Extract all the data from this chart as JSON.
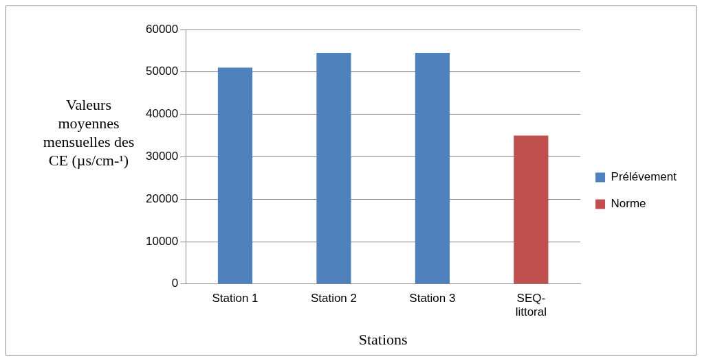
{
  "chart_data": {
    "type": "bar",
    "xlabel": "Stations",
    "ylabel": "Valeurs moyennes mensuelles des CE (µs/cm-¹)",
    "categories": [
      "Station 1",
      "Station 2",
      "Station 3",
      "SEQ-littoral"
    ],
    "series": [
      {
        "name": "Prélévement",
        "color": "#4f81bd",
        "values": [
          51000,
          54500,
          54500,
          null
        ]
      },
      {
        "name": "Norme",
        "color": "#c0504d",
        "values": [
          null,
          null,
          null,
          35000
        ]
      }
    ],
    "ylim": [
      0,
      60000
    ],
    "yticks": [
      0,
      10000,
      20000,
      30000,
      40000,
      50000,
      60000
    ],
    "grid": "y",
    "legend": "right"
  }
}
